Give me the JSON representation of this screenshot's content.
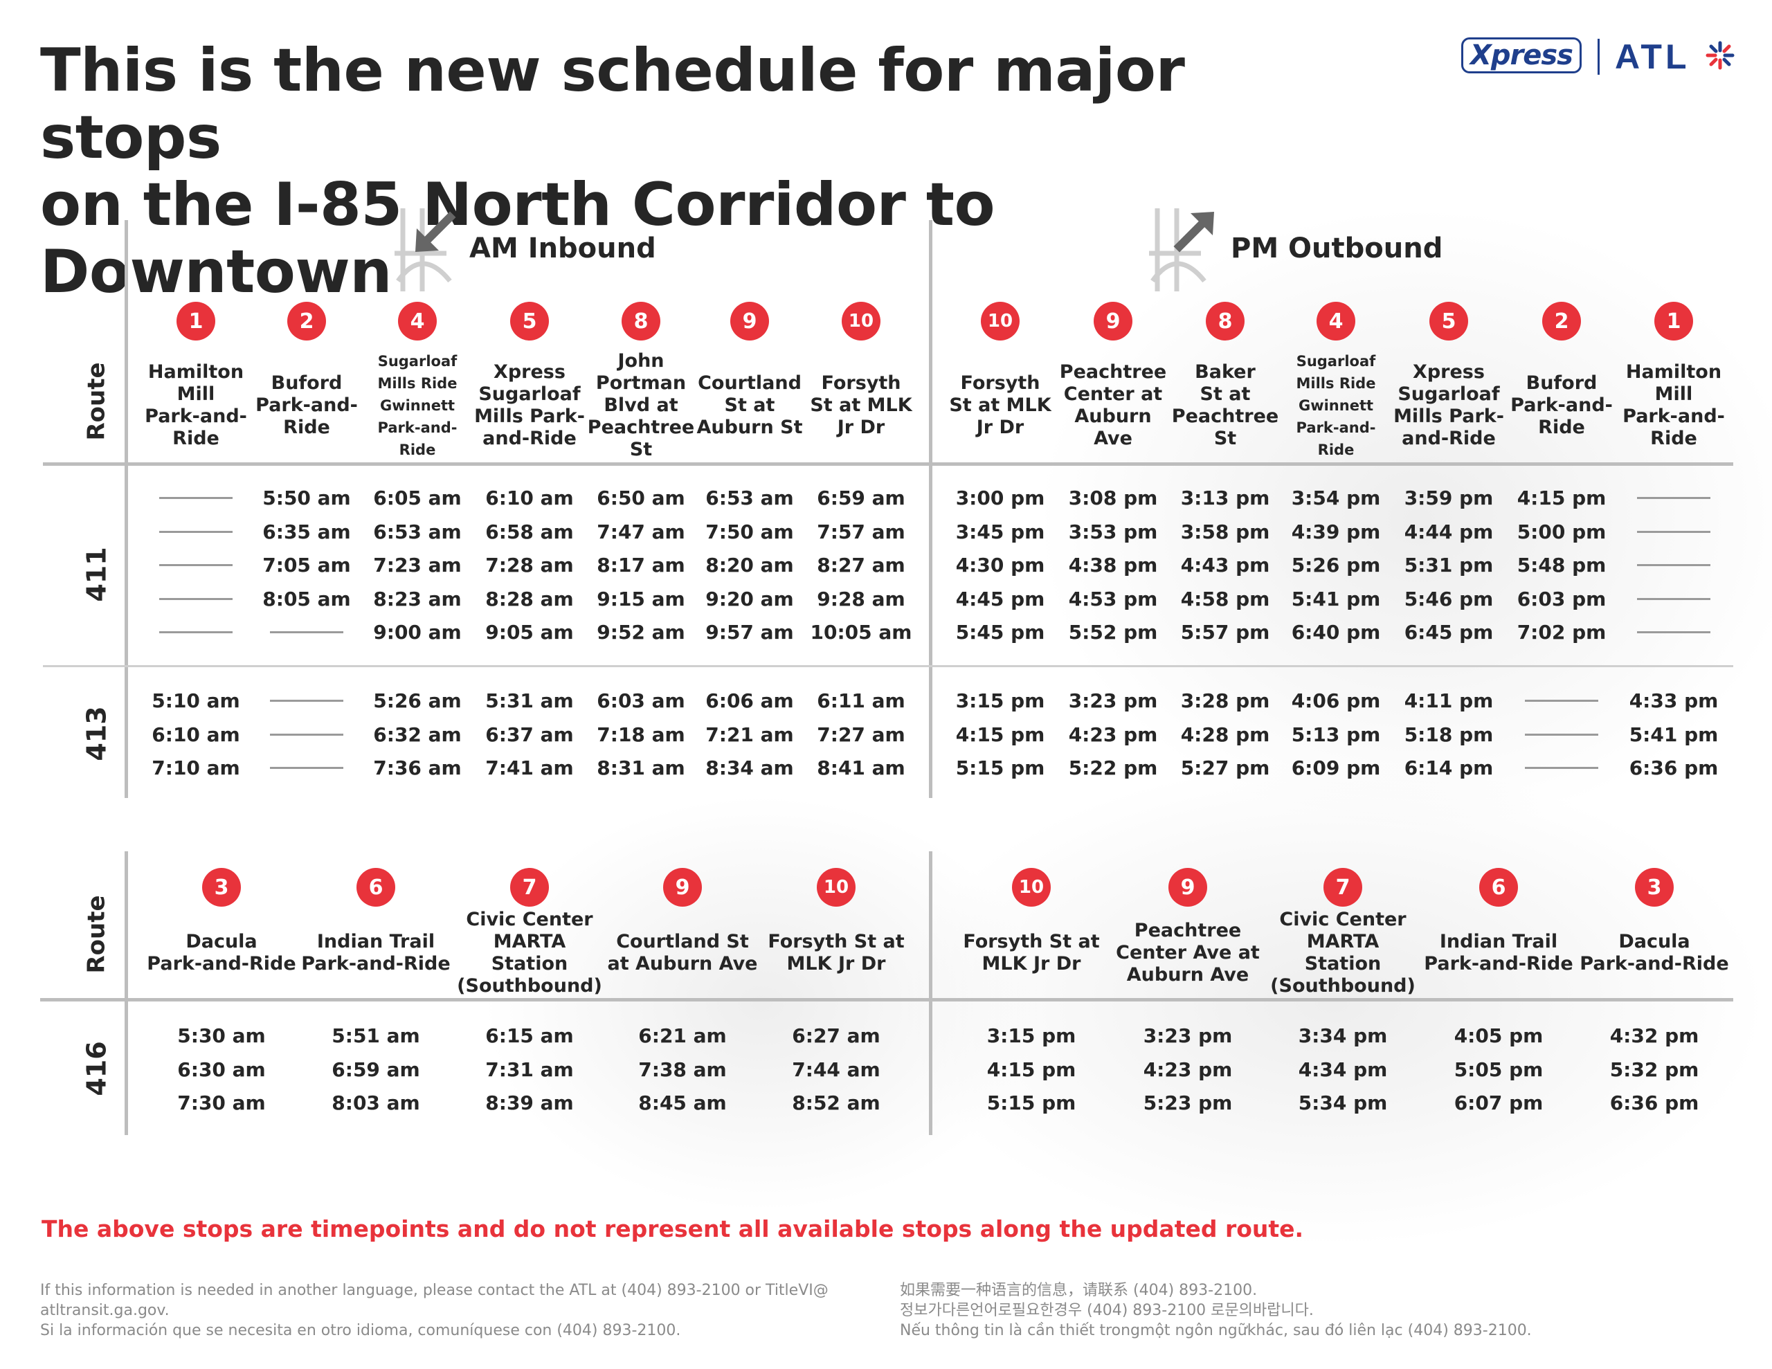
{
  "title": {
    "line1": "This is the new schedule for major stops",
    "line2": "on the I-85 North Corridor to Downtown"
  },
  "logo": {
    "xpress": "Xpress",
    "atl": "ATL",
    "icon": "star-burst-icon"
  },
  "sections": {
    "am_label": "AM Inbound",
    "pm_label": "PM Outbound",
    "route_header": "Route"
  },
  "colors": {
    "accent_red": "#e8333b",
    "brand_blue": "#1f3f8c",
    "divider": "#bdbdbd"
  },
  "am_stops": [
    {
      "num": "1",
      "name": [
        "Hamilton",
        "Mill",
        "Park-and-",
        "Ride"
      ],
      "small": false
    },
    {
      "num": "2",
      "name": [
        "Buford",
        "Park-and-",
        "Ride"
      ],
      "small": false
    },
    {
      "num": "4",
      "name": [
        "Sugarloaf",
        "Mills Ride",
        "Gwinnett",
        "Park-and-Ride"
      ],
      "small": true
    },
    {
      "num": "5",
      "name": [
        "Xpress",
        "Sugarloaf",
        "Mills Park-",
        "and-Ride"
      ],
      "small": false
    },
    {
      "num": "8",
      "name": [
        "John",
        "Portman",
        "Blvd at",
        "Peachtree",
        "St"
      ],
      "small": false
    },
    {
      "num": "9",
      "name": [
        "Courtland",
        "St at",
        "Auburn St"
      ],
      "small": false
    },
    {
      "num": "10",
      "name": [
        "Forsyth",
        "St at MLK",
        "Jr Dr"
      ],
      "small": false
    }
  ],
  "pm_stops": [
    {
      "num": "10",
      "name": [
        "Forsyth",
        "St at MLK",
        "Jr Dr"
      ],
      "small": false
    },
    {
      "num": "9",
      "name": [
        "Peachtree",
        "Center at",
        "Auburn",
        "Ave"
      ],
      "small": false
    },
    {
      "num": "8",
      "name": [
        "Baker",
        "St at",
        "Peachtree",
        "St"
      ],
      "small": false
    },
    {
      "num": "4",
      "name": [
        "Sugarloaf",
        "Mills Ride",
        "Gwinnett",
        "Park-and-Ride"
      ],
      "small": true
    },
    {
      "num": "5",
      "name": [
        "Xpress",
        "Sugarloaf",
        "Mills Park-",
        "and-Ride"
      ],
      "small": false
    },
    {
      "num": "2",
      "name": [
        "Buford",
        "Park-and-",
        "Ride"
      ],
      "small": false
    },
    {
      "num": "1",
      "name": [
        "Hamilton",
        "Mill",
        "Park-and-",
        "Ride"
      ],
      "small": false
    }
  ],
  "route_411": {
    "route": "411",
    "am": [
      [
        "",
        "5:50 am",
        "6:05 am",
        "6:10 am",
        "6:50 am",
        "6:53 am",
        "6:59 am"
      ],
      [
        "",
        "6:35 am",
        "6:53 am",
        "6:58 am",
        "7:47 am",
        "7:50 am",
        "7:57 am"
      ],
      [
        "",
        "7:05 am",
        "7:23 am",
        "7:28 am",
        "8:17 am",
        "8:20 am",
        "8:27 am"
      ],
      [
        "",
        "8:05 am",
        "8:23 am",
        "8:28 am",
        "9:15 am",
        "9:20 am",
        "9:28 am"
      ],
      [
        "",
        "",
        "9:00 am",
        "9:05 am",
        "9:52 am",
        "9:57 am",
        "10:05 am"
      ]
    ],
    "pm": [
      [
        "3:00 pm",
        "3:08 pm",
        "3:13 pm",
        "3:54 pm",
        "3:59 pm",
        "4:15 pm",
        ""
      ],
      [
        "3:45 pm",
        "3:53 pm",
        "3:58 pm",
        "4:39 pm",
        "4:44 pm",
        "5:00 pm",
        ""
      ],
      [
        "4:30 pm",
        "4:38 pm",
        "4:43 pm",
        "5:26 pm",
        "5:31 pm",
        "5:48 pm",
        ""
      ],
      [
        "4:45 pm",
        "4:53 pm",
        "4:58 pm",
        "5:41 pm",
        "5:46 pm",
        "6:03 pm",
        ""
      ],
      [
        "5:45 pm",
        "5:52 pm",
        "5:57 pm",
        "6:40 pm",
        "6:45 pm",
        "7:02 pm",
        ""
      ]
    ]
  },
  "route_413": {
    "route": "413",
    "am": [
      [
        "5:10 am",
        "",
        "5:26 am",
        "5:31 am",
        "6:03 am",
        "6:06 am",
        "6:11 am"
      ],
      [
        "6:10 am",
        "",
        "6:32 am",
        "6:37 am",
        "7:18 am",
        "7:21 am",
        "7:27 am"
      ],
      [
        "7:10 am",
        "",
        "7:36 am",
        "7:41 am",
        "8:31 am",
        "8:34 am",
        "8:41 am"
      ]
    ],
    "pm": [
      [
        "3:15 pm",
        "3:23 pm",
        "3:28 pm",
        "4:06 pm",
        "4:11 pm",
        "",
        "4:33 pm"
      ],
      [
        "4:15 pm",
        "4:23 pm",
        "4:28 pm",
        "5:13 pm",
        "5:18 pm",
        "",
        "5:41 pm"
      ],
      [
        "5:15 pm",
        "5:22 pm",
        "5:27 pm",
        "6:09 pm",
        "6:14 pm",
        "",
        "6:36 pm"
      ]
    ]
  },
  "am_stops_416": [
    {
      "num": "3",
      "name": [
        "Dacula",
        "Park-and-Ride"
      ]
    },
    {
      "num": "6",
      "name": [
        "Indian Trail",
        "Park-and-Ride"
      ]
    },
    {
      "num": "7",
      "name": [
        "Civic Center",
        "MARTA Station",
        "(Southbound)"
      ]
    },
    {
      "num": "9",
      "name": [
        "Courtland St",
        "at Auburn Ave"
      ]
    },
    {
      "num": "10",
      "name": [
        "Forsyth St at",
        "MLK Jr Dr"
      ]
    }
  ],
  "pm_stops_416": [
    {
      "num": "10",
      "name": [
        "Forsyth St at",
        "MLK Jr Dr"
      ]
    },
    {
      "num": "9",
      "name": [
        "Peachtree",
        "Center Ave at",
        "Auburn Ave"
      ]
    },
    {
      "num": "7",
      "name": [
        "Civic Center",
        "MARTA Station",
        "(Southbound)"
      ]
    },
    {
      "num": "6",
      "name": [
        "Indian Trail",
        "Park-and-Ride"
      ]
    },
    {
      "num": "3",
      "name": [
        "Dacula",
        "Park-and-Ride"
      ]
    }
  ],
  "route_416": {
    "route": "416",
    "am": [
      [
        "5:30 am",
        "5:51 am",
        "6:15 am",
        "6:21 am",
        "6:27 am"
      ],
      [
        "6:30 am",
        "6:59 am",
        "7:31 am",
        "7:38 am",
        "7:44 am"
      ],
      [
        "7:30 am",
        "8:03 am",
        "8:39 am",
        "8:45 am",
        "8:52 am"
      ]
    ],
    "pm": [
      [
        "3:15 pm",
        "3:23 pm",
        "3:34 pm",
        "4:05 pm",
        "4:32 pm"
      ],
      [
        "4:15 pm",
        "4:23 pm",
        "4:34 pm",
        "5:05 pm",
        "5:32 pm"
      ],
      [
        "5:15 pm",
        "5:23 pm",
        "5:34 pm",
        "6:07 pm",
        "6:36 pm"
      ]
    ]
  },
  "note": "The above stops are timepoints and do not represent all available stops along the updated route.",
  "footer": {
    "left": [
      "If this information is needed in another language, please contact the ATL at (404) 893-2100 or TitleVI@",
      "atltransit.ga.gov.",
      "Si la información que se necesita en otro idioma, comuníquese con (404) 893-2100."
    ],
    "right": [
      "如果需要一种语言的信息，请联系 (404) 893-2100.",
      "정보가다른언어로필요한경우 (404) 893-2100 로문의바랍니다.",
      "Nếu thông tin là cần thiết trongmột ngôn ngữkhác, sau đó liên lạc (404) 893-2100."
    ]
  }
}
